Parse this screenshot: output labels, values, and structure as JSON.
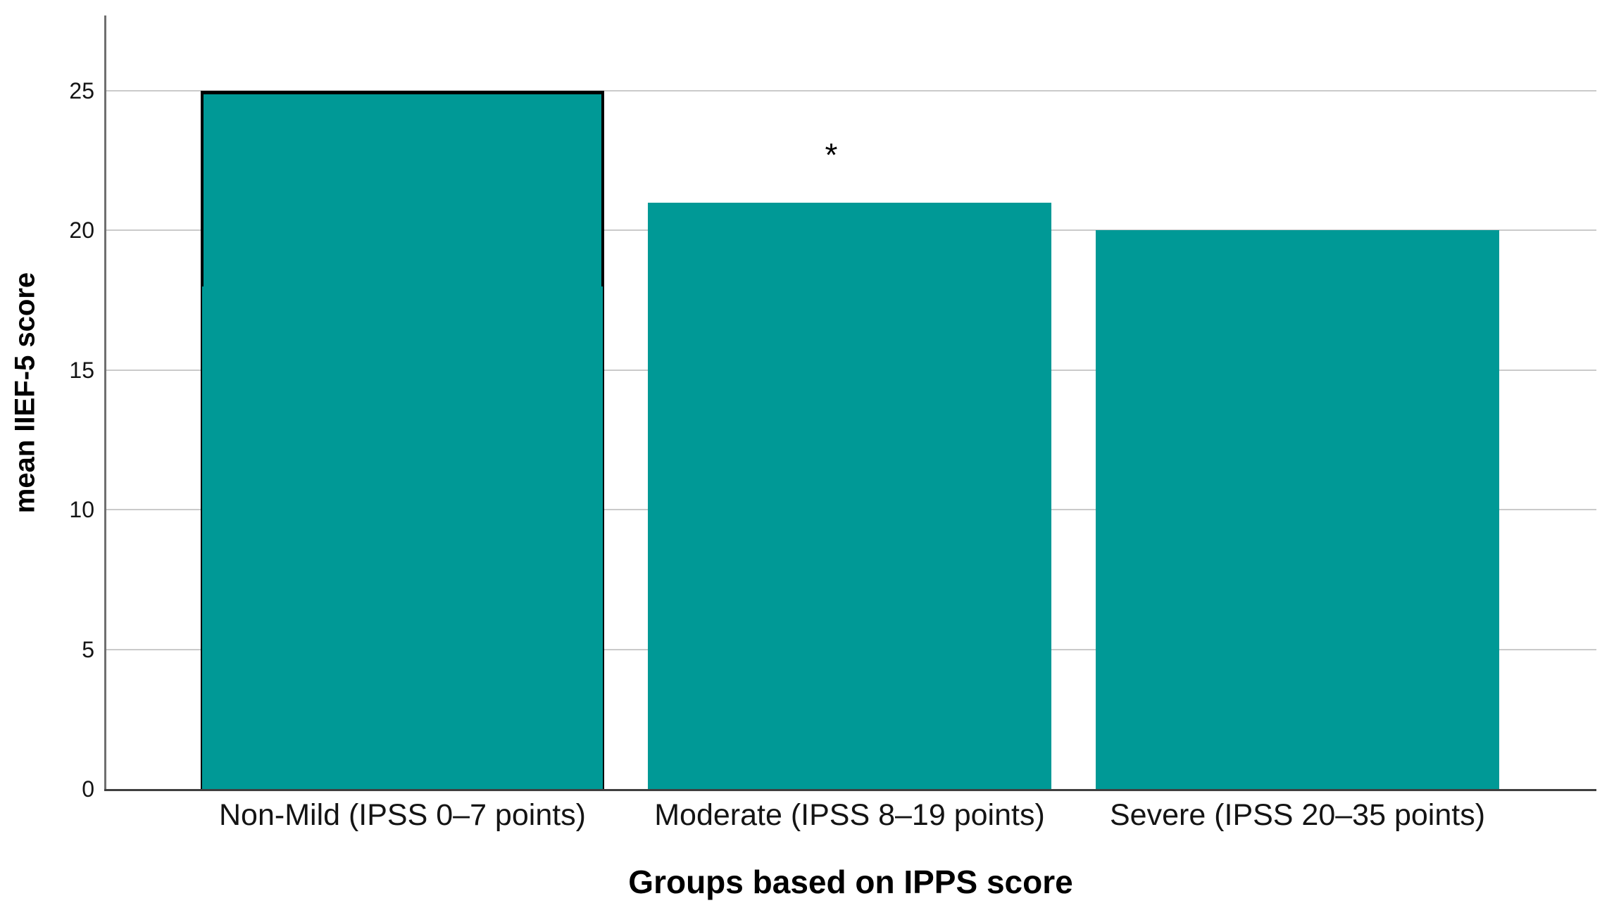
{
  "figure": {
    "background": "#ffffff"
  },
  "chart_data": {
    "type": "bar",
    "categories": [
      "Non-Mild (IPSS 0–7 points)",
      "Moderate (IPSS 8–19 points)",
      "Severe (IPSS 20–35 points)"
    ],
    "values": [
      25,
      21,
      20
    ],
    "title": "",
    "xlabel": "Groups based on IPPS score",
    "ylabel": "mean IIEF-5 score",
    "ylim": [
      0,
      27.7
    ],
    "yticks": [
      0,
      5,
      10,
      15,
      20,
      25
    ],
    "grid": true,
    "legend_position": "none",
    "bar_color": "#009996",
    "gridline_color": "#cacaca",
    "y_axis_color": "#6f6f6f",
    "x_axis_color": "#3f3f3f",
    "tick_label_color": "#141414",
    "annotations": [
      {
        "text": "*",
        "bar_index": 1,
        "y_value": 22.7
      }
    ],
    "highlight_outline": {
      "bar_index": 0,
      "from_value": 18,
      "to_value": 25,
      "color": "#000000"
    }
  }
}
